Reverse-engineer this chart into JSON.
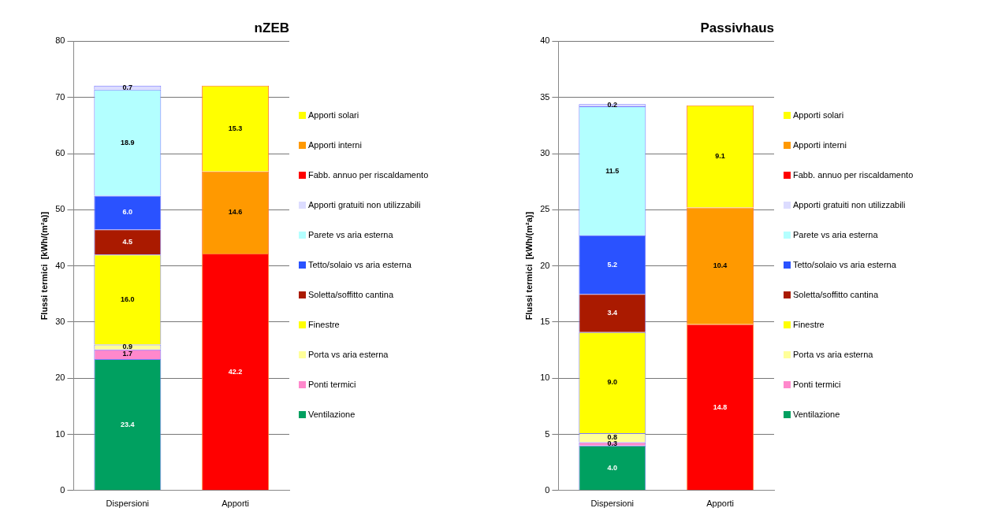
{
  "chart_data": [
    {
      "type": "bar",
      "title": "nZEB",
      "ylabel": "Flussi termici  [kWh/(m²a)]",
      "categories": [
        "Dispersioni",
        "Apporti"
      ],
      "stacked": true,
      "ylim": [
        0,
        80
      ],
      "yticks": [
        0,
        10,
        20,
        30,
        40,
        50,
        60,
        70,
        80
      ],
      "grid": "y",
      "legend": "right",
      "series": [
        {
          "name": "Ventilazione",
          "color": "#00a060",
          "values": [
            23.4,
            null
          ],
          "value_labels": [
            "23.4",
            null
          ]
        },
        {
          "name": "Ponti termici",
          "color": "#ff88cc",
          "values": [
            1.7,
            null
          ],
          "value_labels": [
            "1.7",
            null
          ]
        },
        {
          "name": "Porta vs aria esterna",
          "color": "#ffff99",
          "values": [
            0.9,
            null
          ],
          "value_labels": [
            "0.9",
            null
          ]
        },
        {
          "name": "Finestre",
          "color": "#ffff00",
          "values": [
            16.0,
            null
          ],
          "value_labels": [
            "16.0",
            null
          ]
        },
        {
          "name": "Soletta/soffitto cantina",
          "color": "#aa1a00",
          "values": [
            4.5,
            null
          ],
          "value_labels": [
            "4.5",
            null
          ]
        },
        {
          "name": "Tetto/solaio vs aria esterna",
          "color": "#2a52ff",
          "values": [
            6.0,
            null
          ],
          "value_labels": [
            "6.0",
            null
          ]
        },
        {
          "name": "Parete vs aria esterna",
          "color": "#b3ffff",
          "values": [
            18.9,
            null
          ],
          "value_labels": [
            "18.9",
            null
          ]
        },
        {
          "name": "Apporti gratuiti non utilizzabili",
          "color": "#dcdcff",
          "values": [
            0.7,
            null
          ],
          "value_labels": [
            "0.7",
            null
          ]
        },
        {
          "name": "Fabb. annuo per riscaldamento",
          "color": "#ff0000",
          "values": [
            null,
            42.2
          ],
          "value_labels": [
            null,
            "42.2"
          ]
        },
        {
          "name": "Apporti interni",
          "color": "#ff9900",
          "values": [
            null,
            14.6
          ],
          "value_labels": [
            null,
            "14.6"
          ]
        },
        {
          "name": "Apporti solari",
          "color": "#ffff00",
          "values": [
            null,
            15.3
          ],
          "value_labels": [
            null,
            "15.3"
          ]
        }
      ]
    },
    {
      "type": "bar",
      "title": "Passivhaus",
      "ylabel": "Flussi termici  [kWh/(m²a)]",
      "categories": [
        "Dispersioni",
        "Apporti"
      ],
      "stacked": true,
      "ylim": [
        0,
        40
      ],
      "yticks": [
        0,
        5,
        10,
        15,
        20,
        25,
        30,
        35,
        40
      ],
      "grid": "y",
      "legend": "right",
      "series": [
        {
          "name": "Ventilazione",
          "color": "#00a060",
          "values": [
            4.0,
            null
          ],
          "value_labels": [
            "4.0",
            null
          ]
        },
        {
          "name": "Ponti termici",
          "color": "#ff88cc",
          "values": [
            0.3,
            null
          ],
          "value_labels": [
            "0.3",
            null
          ]
        },
        {
          "name": "Porta vs aria esterna",
          "color": "#ffff99",
          "values": [
            0.8,
            null
          ],
          "value_labels": [
            "0.8",
            null
          ]
        },
        {
          "name": "Finestre",
          "color": "#ffff00",
          "values": [
            9.0,
            null
          ],
          "value_labels": [
            "9.0",
            null
          ]
        },
        {
          "name": "Soletta/soffitto cantina",
          "color": "#aa1a00",
          "values": [
            3.4,
            null
          ],
          "value_labels": [
            "3.4",
            null
          ]
        },
        {
          "name": "Tetto/solaio vs aria esterna",
          "color": "#2a52ff",
          "values": [
            5.2,
            null
          ],
          "value_labels": [
            "5.2",
            null
          ]
        },
        {
          "name": "Parete vs aria esterna",
          "color": "#b3ffff",
          "values": [
            11.5,
            null
          ],
          "value_labels": [
            "11.5",
            null
          ]
        },
        {
          "name": "Apporti gratuiti non utilizzabili",
          "color": "#dcdcff",
          "values": [
            0.2,
            null
          ],
          "value_labels": [
            "0.2",
            null
          ]
        },
        {
          "name": "Fabb. annuo per riscaldamento",
          "color": "#ff0000",
          "values": [
            null,
            14.8
          ],
          "value_labels": [
            null,
            "14.8"
          ]
        },
        {
          "name": "Apporti interni",
          "color": "#ff9900",
          "values": [
            null,
            10.4
          ],
          "value_labels": [
            null,
            "10.4"
          ]
        },
        {
          "name": "Apporti solari",
          "color": "#ffff00",
          "values": [
            null,
            9.1
          ],
          "value_labels": [
            null,
            "9.1"
          ]
        }
      ]
    }
  ]
}
